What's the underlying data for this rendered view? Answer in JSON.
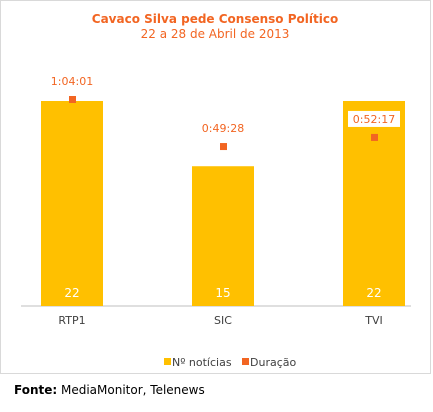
{
  "chart_data": {
    "type": "bar",
    "title": "Cavaco Silva pede Consenso Político",
    "subtitle": "22 a 28 de Abril de 2013",
    "categories": [
      "RTP1",
      "SIC",
      "TVI"
    ],
    "series": [
      {
        "name": "Nº notícias",
        "values": [
          22,
          15,
          22
        ],
        "labels": [
          "22",
          "15",
          "22"
        ],
        "color": "#FFC000"
      },
      {
        "name": "Duração",
        "values": [
          3841,
          2968,
          3137
        ],
        "labels": [
          "1:04:01",
          "0:49:28",
          "0:52:17"
        ],
        "color": "#F26522"
      }
    ],
    "ylim_noticias": [
      0,
      22
    ],
    "ylim_duracao": [
      0,
      3841
    ],
    "legend_position": "bottom",
    "grid": false
  },
  "footer": {
    "source_label": "Fonte:",
    "source_text": " MediaMonitor, Telenews"
  }
}
